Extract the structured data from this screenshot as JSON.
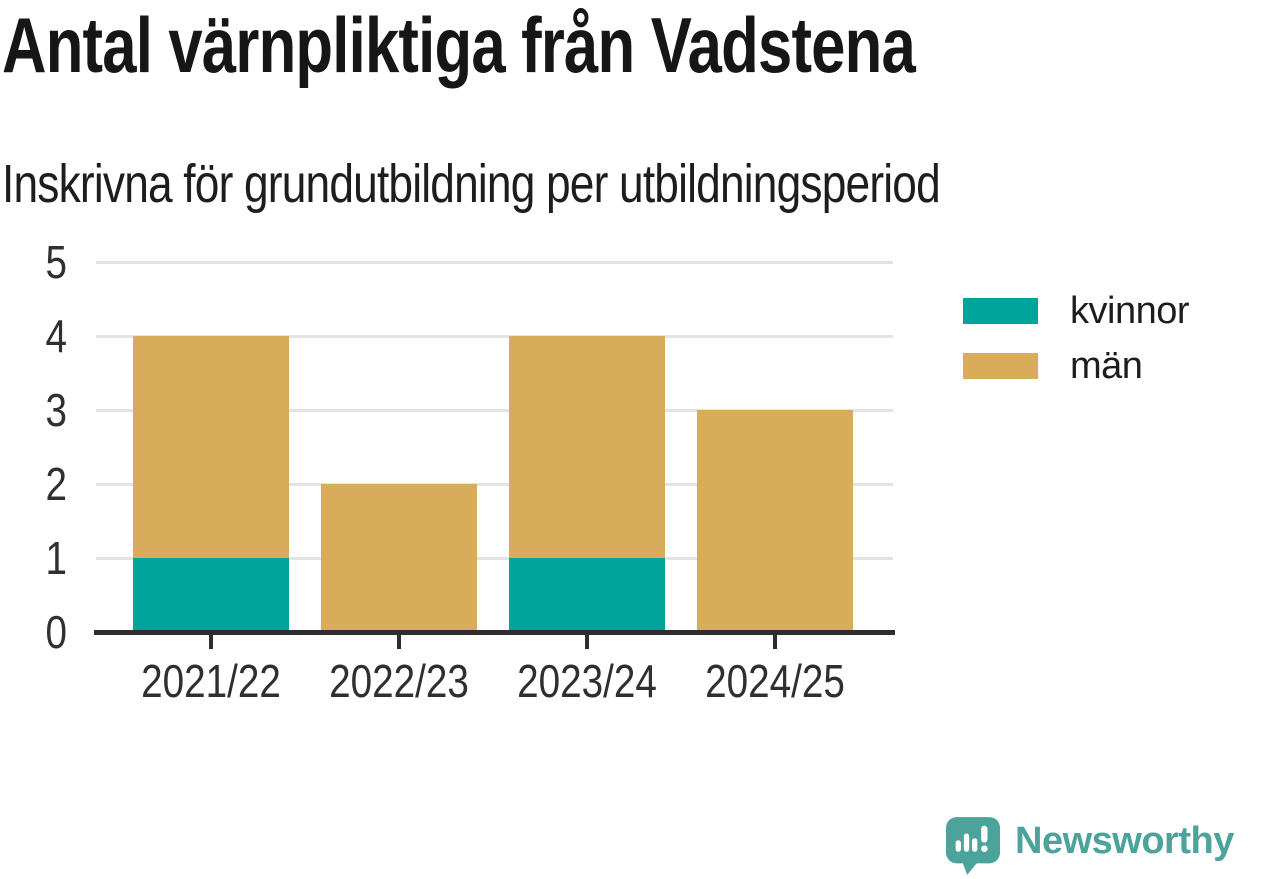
{
  "title": "Antal värnpliktiga från Vadstena",
  "subtitle": "Inskrivna för grundutbildning per utbildningsperiod",
  "brand": {
    "wordmark": "Newsworthy",
    "color": "#4BA39C"
  },
  "colors": {
    "kvinnor": "#00A49B",
    "man": "#D9AC5B",
    "axis": "#2D2D2D",
    "grid": "#E3E3E3",
    "tick_text": "#303030"
  },
  "chart_data": {
    "type": "bar",
    "stacked": true,
    "title": "Antal värnpliktiga från Vadstena",
    "subtitle": "Inskrivna för grundutbildning per utbildningsperiod",
    "categories": [
      "2021/22",
      "2022/23",
      "2023/24",
      "2024/25"
    ],
    "series": [
      {
        "name": "kvinnor",
        "color": "#00A49B",
        "values": [
          1,
          0,
          1,
          0
        ]
      },
      {
        "name": "män",
        "color": "#D9AC5B",
        "values": [
          3,
          2,
          3,
          3
        ]
      }
    ],
    "totals": [
      4,
      2,
      4,
      3
    ],
    "xlabel": "",
    "ylabel": "",
    "ylim": [
      0,
      5
    ],
    "yticks": [
      0,
      1,
      2,
      3,
      4,
      5
    ],
    "grid": "horizontal",
    "legend_position": "right"
  }
}
